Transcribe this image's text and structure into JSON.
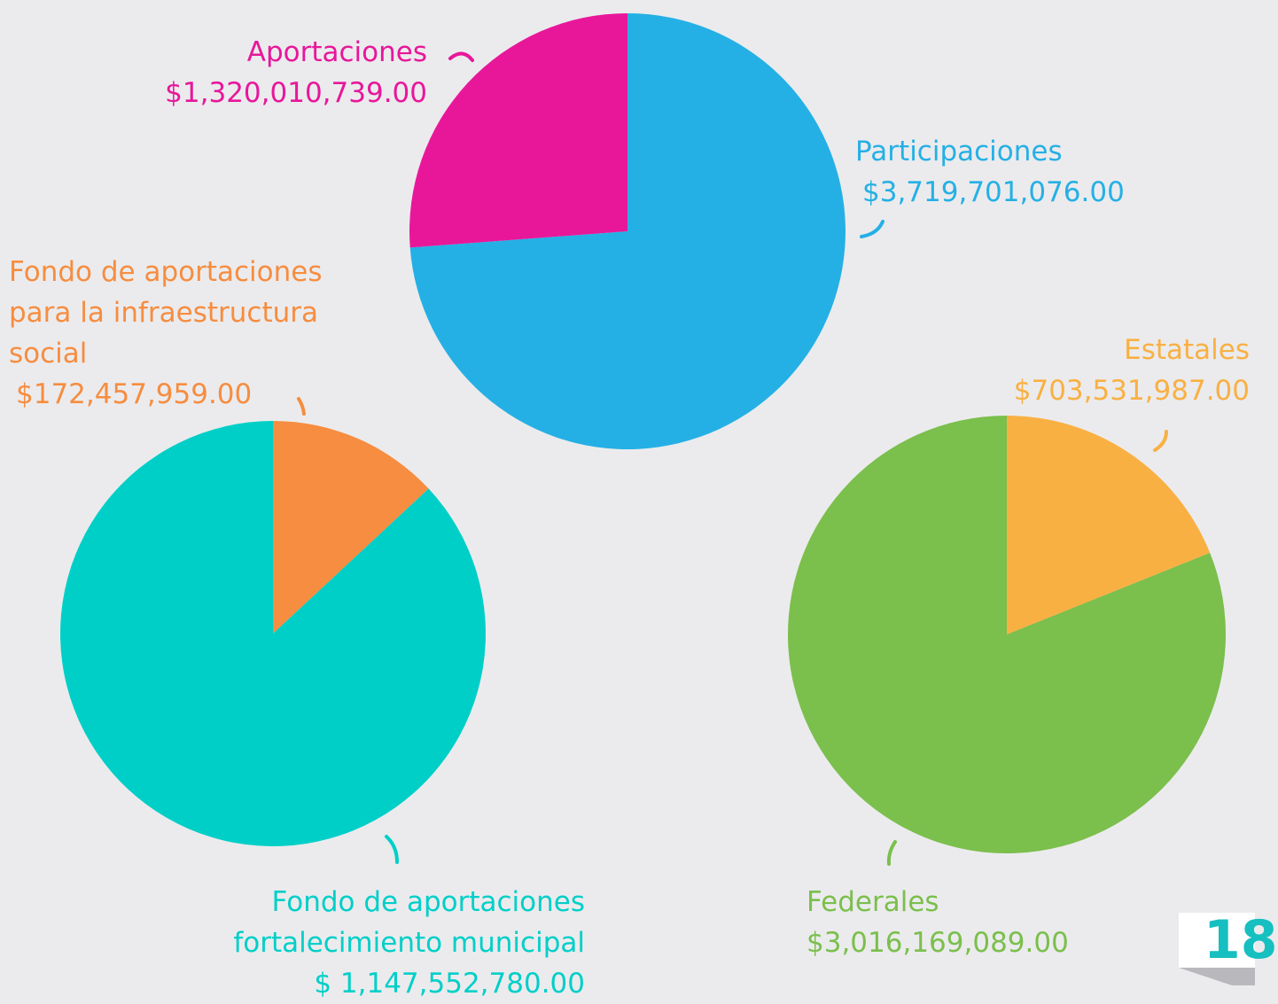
{
  "chart_data": [
    {
      "type": "pie",
      "categories": [
        "Participaciones",
        "Aportaciones"
      ],
      "values": [
        3719701076,
        1320010739
      ],
      "value_labels": [
        "$3,719,701,076.00",
        "$1,320,010,739.00"
      ],
      "colors": [
        "#25b0e5",
        "#e8179a"
      ]
    },
    {
      "type": "pie",
      "categories": [
        "Fondo de aportaciones para la infraestructura social",
        "Fondo de aportaciones fortalecimiento municipal"
      ],
      "values": [
        172457959,
        1147552780
      ],
      "value_labels": [
        "$172,457,959.00",
        "$ 1,147,552,780.00"
      ],
      "colors": [
        "#f68d40",
        "#00cfc8"
      ]
    },
    {
      "type": "pie",
      "categories": [
        "Estatales",
        "Federales"
      ],
      "values": [
        703531987,
        3016169089
      ],
      "value_labels": [
        "$703,531,987.00",
        "$3,016,169,089.00"
      ],
      "colors": [
        "#f9b043",
        "#7bbf4c"
      ]
    }
  ],
  "page_number": "18"
}
